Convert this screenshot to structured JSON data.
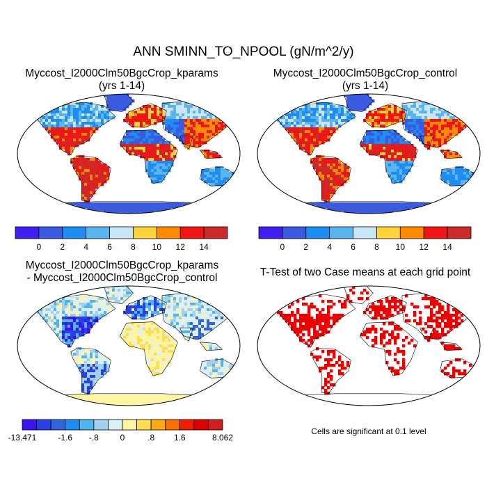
{
  "main_title": "ANN SMINN_TO_NPOOL (gN/m^2/y)",
  "panels": {
    "top_left": {
      "title_line1": "Myccost_I2000Clm50BgcCrop_kparams",
      "title_line2": "(yrs 1-14)"
    },
    "top_right": {
      "title_line1": "Myccost_I2000Clm50BgcCrop_control",
      "title_line2": "(yrs 1-14)"
    },
    "bottom_left": {
      "title_line1": "Myccost_I2000Clm50BgcCrop_kparams",
      "title_line2": "- Myccost_I2000Clm50BgcCrop_control"
    },
    "bottom_right": {
      "title_line1": "T-Test of two Case means at each grid point"
    }
  },
  "significance_note": "Cells are significant at 0.1 level",
  "chart_data": [
    {
      "type": "heatmap",
      "panel": "top_left",
      "title": "Myccost_I2000Clm50BgcCrop_kparams (yrs 1-14)",
      "colorbar": {
        "labels": [
          "0",
          "2",
          "4",
          "6",
          "8",
          "10",
          "12",
          "14"
        ],
        "colors": [
          "#4020f0",
          "#3a5ae0",
          "#1e8cf0",
          "#5ab4ee",
          "#c8e6f8",
          "#ffd23c",
          "#ff8c00",
          "#f01414",
          "#cc2a2a"
        ]
      }
    },
    {
      "type": "heatmap",
      "panel": "top_right",
      "title": "Myccost_I2000Clm50BgcCrop_control (yrs 1-14)",
      "colorbar": {
        "labels": [
          "0",
          "2",
          "4",
          "6",
          "8",
          "10",
          "12",
          "14"
        ],
        "colors": [
          "#4020f0",
          "#3a5ae0",
          "#1e8cf0",
          "#5ab4ee",
          "#c8e6f8",
          "#ffd23c",
          "#ff8c00",
          "#f01414",
          "#cc2a2a"
        ]
      }
    },
    {
      "type": "heatmap",
      "panel": "bottom_left",
      "title": "Myccost_I2000Clm50BgcCrop_kparams - Myccost_I2000Clm50BgcCrop_control",
      "colorbar": {
        "labels": [
          "-13.471",
          "-1.6",
          "-.8",
          "0",
          ".8",
          "1.6",
          "8.062"
        ],
        "colors": [
          "#3b14f0",
          "#2840e6",
          "#3264dc",
          "#1e8cf0",
          "#50b4f0",
          "#a0d2f0",
          "#dcf0f8",
          "#fff5a0",
          "#ffdc50",
          "#ffaa14",
          "#ff6e00",
          "#f01e00",
          "#dc0000",
          "#d21e1e"
        ]
      }
    },
    {
      "type": "heatmap",
      "panel": "bottom_right",
      "title": "T-Test of two Case means at each grid point",
      "significant_color": "#ee0000"
    }
  ]
}
